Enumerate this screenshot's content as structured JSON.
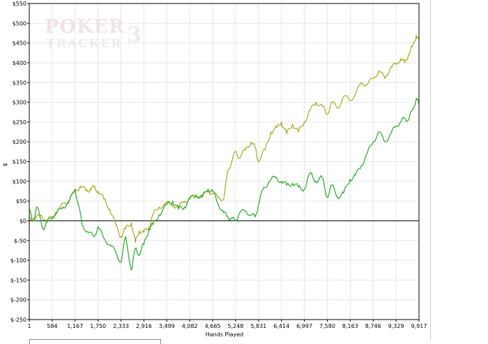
{
  "watermark": {
    "line1": "POKER",
    "line2": "TRACKER",
    "version": "3"
  },
  "chart_data": {
    "type": "line",
    "xlabel": "Hands Played",
    "ylabel": "$",
    "xlim": [
      1,
      9917
    ],
    "ylim": [
      -250,
      550
    ],
    "x_ticks": [
      "1",
      "584",
      "1,167",
      "1,750",
      "2,333",
      "2,916",
      "3,499",
      "4,082",
      "4,665",
      "5,248",
      "5,831",
      "6,414",
      "6,997",
      "7,580",
      "8,163",
      "8,746",
      "9,329",
      "9,917"
    ],
    "y_ticks": [
      "$-250",
      "$-200",
      "$-150",
      "$-100",
      "$-50",
      "$0",
      "$50",
      "$100",
      "$150",
      "$200",
      "$250",
      "$300",
      "$350",
      "$400",
      "$450",
      "$500",
      "$550"
    ],
    "y_tick_values": [
      -250,
      -200,
      -150,
      -100,
      -50,
      0,
      50,
      100,
      150,
      200,
      250,
      300,
      350,
      400,
      450,
      500,
      550
    ],
    "grid": true,
    "zero_line": true,
    "series": [
      {
        "color": "#a8a81a",
        "x": [
          1,
          150,
          300,
          450,
          584,
          750,
          900,
          1000,
          1167,
          1300,
          1450,
          1550,
          1650,
          1750,
          1900,
          2050,
          2200,
          2333,
          2450,
          2600,
          2700,
          2800,
          2916,
          3050,
          3150,
          3300,
          3499,
          3650,
          3800,
          3950,
          4082,
          4250,
          4400,
          4550,
          4665,
          4800,
          4950,
          5050,
          5150,
          5248,
          5350,
          5500,
          5650,
          5750,
          5831,
          6000,
          6150,
          6300,
          6414,
          6550,
          6700,
          6850,
          6997,
          7150,
          7300,
          7450,
          7580,
          7700,
          7850,
          8000,
          8163,
          8300,
          8450,
          8600,
          8746,
          8900,
          9050,
          9200,
          9329,
          9450,
          9550,
          9650,
          9750,
          9850,
          9917
        ],
        "y": [
          10,
          5,
          15,
          0,
          10,
          30,
          45,
          50,
          75,
          88,
          75,
          80,
          85,
          75,
          55,
          30,
          -10,
          -40,
          -20,
          -5,
          -55,
          -25,
          -30,
          -15,
          15,
          35,
          45,
          40,
          35,
          50,
          55,
          65,
          60,
          75,
          70,
          60,
          55,
          125,
          150,
          175,
          160,
          180,
          200,
          185,
          150,
          180,
          225,
          235,
          250,
          220,
          245,
          225,
          250,
          280,
          300,
          290,
          270,
          300,
          285,
          315,
          305,
          320,
          350,
          345,
          360,
          380,
          360,
          390,
          395,
          410,
          400,
          420,
          440,
          470,
          455
        ]
      },
      {
        "color": "#22aa22",
        "x": [
          1,
          100,
          200,
          350,
          450,
          584,
          700,
          850,
          1000,
          1167,
          1250,
          1350,
          1500,
          1650,
          1750,
          1900,
          2050,
          2200,
          2333,
          2450,
          2600,
          2700,
          2800,
          2916,
          3050,
          3150,
          3300,
          3499,
          3650,
          3800,
          3950,
          4082,
          4250,
          4400,
          4550,
          4665,
          4800,
          4950,
          5050,
          5150,
          5248,
          5350,
          5500,
          5650,
          5750,
          5831,
          5950,
          6100,
          6250,
          6414,
          6550,
          6700,
          6850,
          6997,
          7150,
          7300,
          7450,
          7580,
          7700,
          7850,
          8000,
          8163,
          8300,
          8450,
          8600,
          8746,
          8900,
          9050,
          9200,
          9329,
          9450,
          9550,
          9650,
          9750,
          9850,
          9917
        ],
        "y": [
          25,
          0,
          35,
          -20,
          -5,
          10,
          20,
          35,
          45,
          80,
          40,
          -10,
          -30,
          -40,
          -15,
          -45,
          -60,
          -80,
          -105,
          -40,
          -125,
          -70,
          -85,
          -60,
          -20,
          -10,
          15,
          40,
          50,
          30,
          35,
          55,
          65,
          60,
          80,
          75,
          45,
          20,
          10,
          5,
          0,
          20,
          25,
          15,
          10,
          40,
          80,
          100,
          110,
          100,
          90,
          95,
          85,
          80,
          120,
          100,
          110,
          60,
          90,
          60,
          70,
          105,
          115,
          140,
          170,
          200,
          225,
          200,
          220,
          240,
          250,
          260,
          255,
          280,
          310,
          295
        ]
      }
    ]
  }
}
